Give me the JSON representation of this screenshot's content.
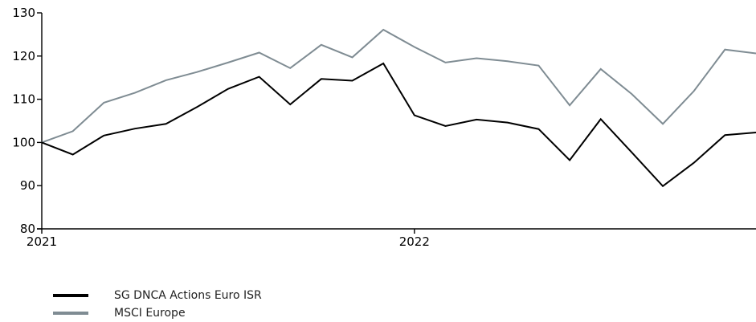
{
  "chart_data": {
    "type": "line",
    "x": [
      "2021-01",
      "2021-02",
      "2021-03",
      "2021-04",
      "2021-05",
      "2021-06",
      "2021-07",
      "2021-08",
      "2021-09",
      "2021-10",
      "2021-11",
      "2021-12",
      "2022-01",
      "2022-02",
      "2022-03",
      "2022-04",
      "2022-05",
      "2022-06",
      "2022-07",
      "2022-08",
      "2022-09",
      "2022-10",
      "2022-11",
      "2022-12"
    ],
    "x_tick_labels": [
      {
        "x": "2021-01",
        "label": "2021"
      },
      {
        "x": "2022-01",
        "label": "2022"
      }
    ],
    "y_ticks": [
      80,
      90,
      100,
      110,
      120,
      130
    ],
    "ylim": [
      80,
      130
    ],
    "xlim": [
      "2021-01",
      "2022-12"
    ],
    "grid": false,
    "legend_position": "bottom-left",
    "series": [
      {
        "name": "SG DNCA Actions Euro ISR",
        "color": "#000000",
        "values": [
          100,
          97.2,
          101.6,
          103.2,
          104.3,
          108.2,
          112.4,
          115.2,
          108.8,
          114.7,
          114.3,
          118.3,
          106.3,
          103.8,
          105.3,
          104.6,
          103.1,
          95.9,
          105.4,
          97.7,
          89.9,
          95.3,
          101.7,
          102.3
        ]
      },
      {
        "name": "MSCI Europe",
        "color": "#7f8c93",
        "values": [
          100,
          102.6,
          109.2,
          111.5,
          114.4,
          116.3,
          118.5,
          120.8,
          117.2,
          122.6,
          119.7,
          126.1,
          122.1,
          118.5,
          119.5,
          118.8,
          117.8,
          108.6,
          117,
          111.2,
          104.3,
          111.9,
          121.5,
          120.6
        ]
      }
    ]
  }
}
